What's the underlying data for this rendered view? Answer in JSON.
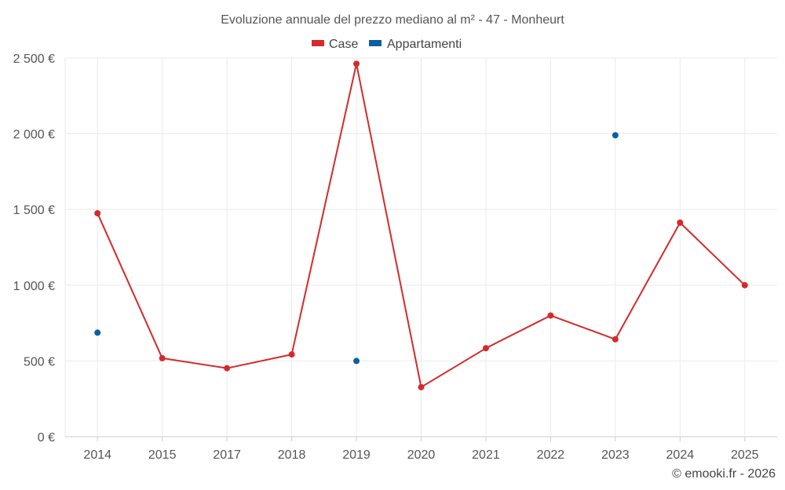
{
  "chart_data": {
    "type": "line",
    "title": "Evoluzione annuale del prezzo mediano al m² - 47 - Monheurt",
    "categories": [
      "2014",
      "2015",
      "2017",
      "2018",
      "2019",
      "2020",
      "2021",
      "2022",
      "2023",
      "2024",
      "2025"
    ],
    "series": [
      {
        "name": "Case",
        "color": "#d42a2a",
        "values": [
          1475,
          518,
          452,
          543,
          2462,
          327,
          584,
          800,
          643,
          1413,
          1000
        ]
      },
      {
        "name": "Appartamenti",
        "color": "#0b5fa0",
        "values": [
          687,
          null,
          null,
          null,
          500,
          null,
          null,
          null,
          1990,
          null,
          null
        ]
      }
    ],
    "ylim": [
      0,
      2500
    ],
    "yticks": [
      {
        "value": 0,
        "label": "0 €"
      },
      {
        "value": 500,
        "label": "500 €"
      },
      {
        "value": 1000,
        "label": "1 000 €"
      },
      {
        "value": 1500,
        "label": "1 500 €"
      },
      {
        "value": 2000,
        "label": "2 000 €"
      },
      {
        "value": 2500,
        "label": "2 500 €"
      }
    ],
    "legend_position": "top-center",
    "grid": true,
    "credit": "© emooki.fr - 2026"
  }
}
